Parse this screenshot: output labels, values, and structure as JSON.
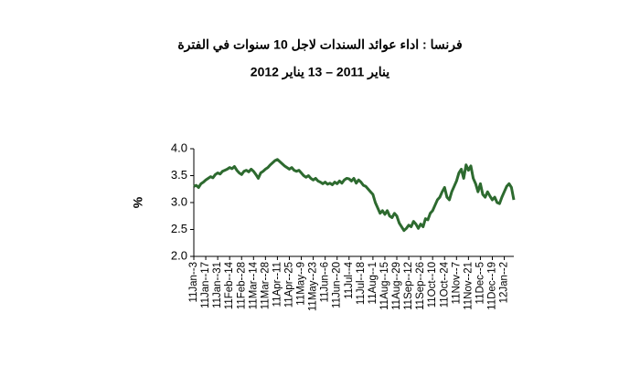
{
  "chart_data": {
    "type": "line",
    "title": "فرنسا : اداء عوائد السندات لاجل 10 سنوات في الفترة",
    "subtitle": "يناير 2011 – 13 يناير  2012",
    "y_label": "%",
    "color": "#2d6a2f",
    "ylim": [
      2,
      4
    ],
    "yticks": [
      {
        "value": 2,
        "label": "2.0"
      },
      {
        "value": 2.5,
        "label": "2.5"
      },
      {
        "value": 3,
        "label": "3.0"
      },
      {
        "value": 3.5,
        "label": "3.5"
      },
      {
        "value": 4,
        "label": "4.0"
      }
    ],
    "categories": [
      "11Jan--3",
      null,
      null,
      null,
      null,
      "11Jan--17",
      null,
      null,
      null,
      null,
      "11Jan--31",
      null,
      null,
      null,
      null,
      "11Feb--14",
      null,
      null,
      null,
      null,
      "11Feb--28",
      null,
      null,
      null,
      null,
      "11Mar--14",
      null,
      null,
      null,
      null,
      "11Mar--28",
      null,
      null,
      null,
      null,
      "11Apr--11",
      null,
      null,
      null,
      null,
      "11Apr--25",
      null,
      null,
      null,
      null,
      "11May--9",
      null,
      null,
      null,
      null,
      "11May--23",
      null,
      null,
      null,
      null,
      "11Jun--6",
      null,
      null,
      null,
      null,
      "11Jun--20",
      null,
      null,
      null,
      null,
      "11Jul--4",
      null,
      null,
      null,
      null,
      "11Jul--18",
      null,
      null,
      null,
      null,
      "11Aug--1",
      null,
      null,
      null,
      null,
      "11Aug--15",
      null,
      null,
      null,
      null,
      "11Aug--29",
      null,
      null,
      null,
      null,
      "11Sep--12",
      null,
      null,
      null,
      null,
      "11Sep--26",
      null,
      null,
      null,
      null,
      "11Oct--10",
      null,
      null,
      null,
      null,
      "11Oct--24",
      null,
      null,
      null,
      null,
      "11Nov--7",
      null,
      null,
      null,
      null,
      "11Nov--21",
      null,
      null,
      null,
      null,
      "11Dec--5",
      null,
      null,
      null,
      null,
      "11Dec--19",
      null,
      null,
      null,
      null,
      "12Jan--2",
      null,
      null,
      null,
      null
    ],
    "values": [
      3.3,
      3.32,
      3.28,
      3.35,
      3.38,
      3.42,
      3.45,
      3.48,
      3.46,
      3.52,
      3.55,
      3.53,
      3.58,
      3.6,
      3.62,
      3.65,
      3.63,
      3.67,
      3.6,
      3.55,
      3.52,
      3.58,
      3.6,
      3.57,
      3.62,
      3.58,
      3.52,
      3.45,
      3.55,
      3.58,
      3.62,
      3.65,
      3.7,
      3.74,
      3.78,
      3.8,
      3.76,
      3.72,
      3.68,
      3.65,
      3.62,
      3.65,
      3.6,
      3.58,
      3.6,
      3.55,
      3.5,
      3.47,
      3.5,
      3.45,
      3.42,
      3.45,
      3.4,
      3.38,
      3.35,
      3.38,
      3.34,
      3.36,
      3.33,
      3.38,
      3.35,
      3.4,
      3.36,
      3.42,
      3.45,
      3.44,
      3.4,
      3.45,
      3.36,
      3.42,
      3.38,
      3.32,
      3.3,
      3.25,
      3.2,
      3.15,
      3.0,
      2.9,
      2.8,
      2.85,
      2.78,
      2.85,
      2.75,
      2.72,
      2.8,
      2.75,
      2.62,
      2.55,
      2.48,
      2.52,
      2.58,
      2.55,
      2.65,
      2.6,
      2.52,
      2.6,
      2.55,
      2.7,
      2.68,
      2.8,
      2.85,
      2.95,
      3.05,
      3.1,
      3.2,
      3.28,
      3.1,
      3.05,
      3.2,
      3.3,
      3.4,
      3.55,
      3.62,
      3.45,
      3.7,
      3.6,
      3.68,
      3.45,
      3.35,
      3.2,
      3.35,
      3.15,
      3.1,
      3.2,
      3.12,
      3.05,
      3.1,
      3.0,
      2.98,
      3.1,
      3.2,
      3.3,
      3.35,
      3.28,
      3.05
    ]
  }
}
